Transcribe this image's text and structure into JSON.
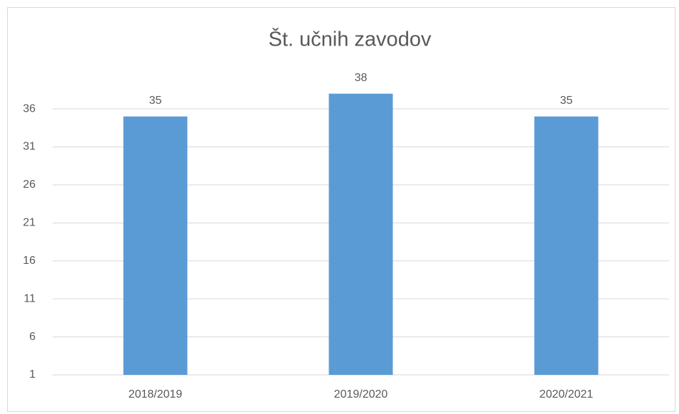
{
  "chart_data": {
    "type": "bar",
    "title": "Št. učnih zavodov",
    "categories": [
      "2018/2019",
      "2019/2020",
      "2020/2021"
    ],
    "values": [
      35,
      38,
      35
    ],
    "color": "#5b9bd5",
    "ylim": [
      1,
      39
    ],
    "yticks": [
      1,
      6,
      11,
      16,
      21,
      26,
      31,
      36
    ],
    "grid": true
  }
}
